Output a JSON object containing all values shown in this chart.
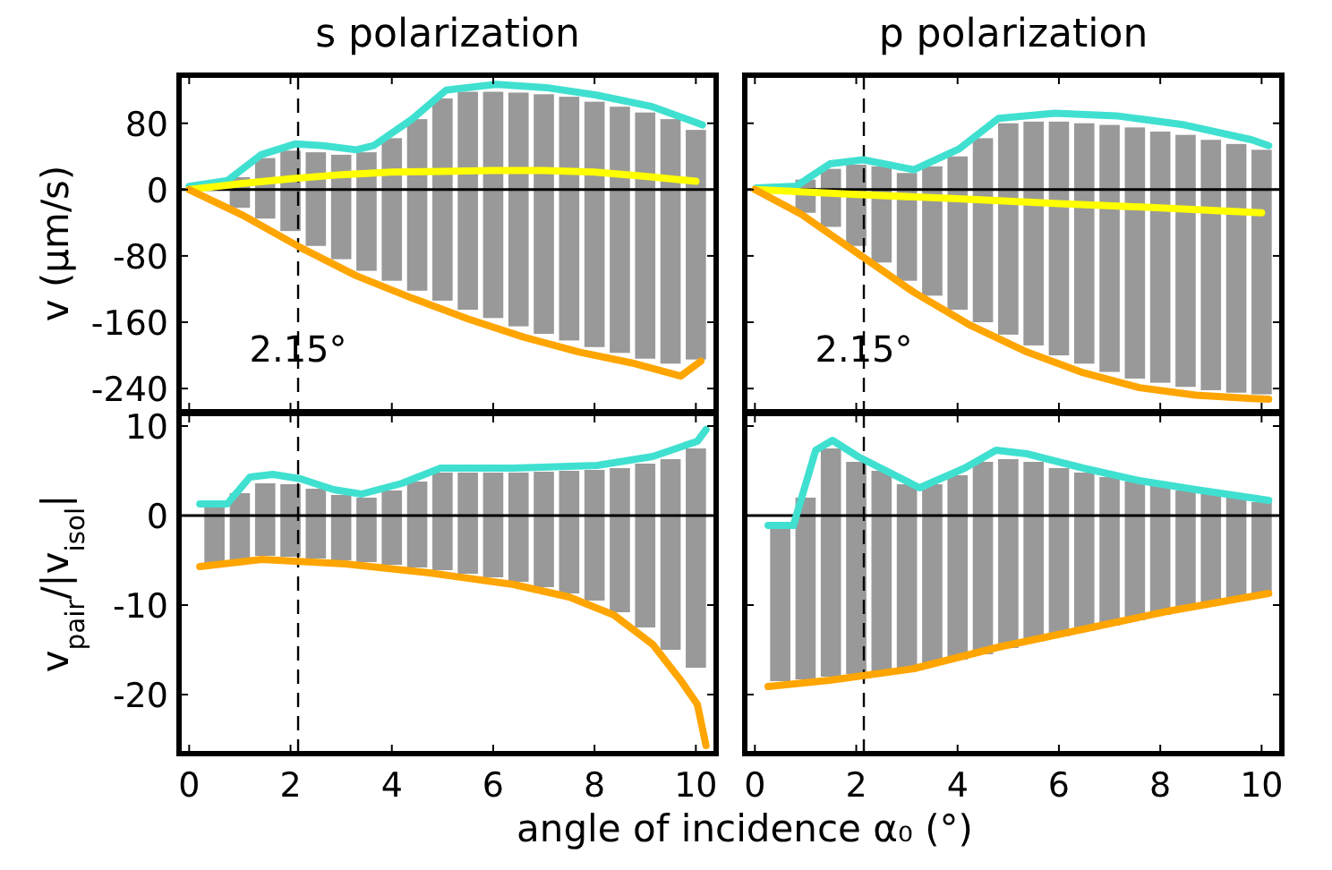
{
  "chart_data": [
    {
      "type": "line",
      "title": "s polarization",
      "ylabel": "v (μm/s)",
      "xlim": [
        -0.2,
        10.4
      ],
      "ylim": [
        -268,
        138
      ],
      "xticks": [
        0,
        2,
        4,
        6,
        8,
        10
      ],
      "yticks": [
        -240,
        -160,
        -80,
        0,
        80
      ],
      "tick_labels": "y",
      "marker": "none",
      "line_style": "solid",
      "ref_lines": [
        {
          "axis": "x",
          "value": 2.15,
          "label": "2.15°",
          "line_style": "dashed",
          "color": "#000000"
        },
        {
          "axis": "y",
          "value": 0,
          "label": null,
          "line_style": "solid",
          "color": "#000000"
        }
      ],
      "series": [
        {
          "type": "bar",
          "color": "#999999",
          "x": [
            1,
            1.5,
            2,
            2.5,
            3,
            3.5,
            4,
            4.5,
            5,
            5.5,
            6,
            6.5,
            7,
            7.5,
            8,
            8.5,
            9,
            9.5,
            10
          ],
          "base": [
            -22,
            -35,
            -50,
            -68,
            -84,
            -98,
            -110,
            -122,
            -134,
            -145,
            -155,
            -165,
            -174,
            -182,
            -190,
            -197,
            -204,
            -210,
            -205
          ],
          "values": [
            37,
            73,
            97,
            113,
            126,
            143,
            172,
            207,
            244,
            263,
            273,
            282,
            289,
            294,
            296,
            297,
            297,
            295,
            277
          ]
        },
        {
          "color": "#40e0d0",
          "x": [
            0,
            0.76,
            1.42,
            2.09,
            2.64,
            3.3,
            3.64,
            4.4,
            5.07,
            6.06,
            7.05,
            8.04,
            9.14,
            10.13
          ],
          "values": [
            4,
            11,
            42,
            55,
            53,
            48,
            53,
            85,
            120,
            127,
            123,
            114,
            100,
            78
          ]
        },
        {
          "color": "#ffff00",
          "x": [
            0,
            1,
            2,
            3,
            4,
            5,
            6,
            7,
            8,
            9,
            10
          ],
          "values": [
            0,
            7,
            13,
            18,
            21,
            22,
            23,
            23,
            21,
            16,
            10
          ]
        },
        {
          "color": "#ffa500",
          "x": [
            0,
            1.09,
            2.2,
            3.3,
            4.4,
            5.5,
            6.6,
            7.7,
            8.8,
            9.7,
            10.1
          ],
          "values": [
            0,
            -32,
            -70,
            -104,
            -131,
            -156,
            -178,
            -196,
            -210,
            -225,
            -207
          ]
        }
      ]
    },
    {
      "type": "line",
      "title": "p polarization",
      "xlim": [
        -0.2,
        10.4
      ],
      "ylim": [
        -268,
        138
      ],
      "xticks": [
        0,
        2,
        4,
        6,
        8,
        10
      ],
      "yticks": [
        -240,
        -160,
        -80,
        0,
        80
      ],
      "tick_labels": false,
      "marker": "none",
      "line_style": "solid",
      "ref_lines": [
        {
          "axis": "x",
          "value": 2.15,
          "label": "2.15°",
          "line_style": "dashed",
          "color": "#000000"
        },
        {
          "axis": "y",
          "value": 0,
          "label": null,
          "line_style": "solid",
          "color": "#000000"
        }
      ],
      "series": [
        {
          "type": "bar",
          "color": "#999999",
          "x": [
            1,
            1.5,
            2,
            2.5,
            3,
            3.5,
            4,
            4.5,
            5,
            5.5,
            6,
            6.5,
            7,
            7.5,
            8,
            8.5,
            9,
            9.5,
            10
          ],
          "base": [
            -28,
            -45,
            -68,
            -88,
            -110,
            -128,
            -145,
            -160,
            -175,
            -188,
            -200,
            -210,
            -220,
            -228,
            -233,
            -238,
            -242,
            -245,
            -247
          ],
          "values": [
            40,
            70,
            98,
            116,
            130,
            156,
            185,
            222,
            255,
            270,
            282,
            290,
            298,
            303,
            303,
            304,
            302,
            300,
            295
          ]
        },
        {
          "color": "#40e0d0",
          "x": [
            0.03,
            0.81,
            1.48,
            2.14,
            3.14,
            4.03,
            4.81,
            5.92,
            7.14,
            8.48,
            9.81,
            10.14
          ],
          "values": [
            2,
            4,
            31,
            36,
            24,
            49,
            86,
            92,
            89,
            78,
            60,
            53
          ]
        },
        {
          "color": "#ffff00",
          "x": [
            0,
            2,
            4,
            6,
            8,
            10
          ],
          "values": [
            0,
            -6,
            -11,
            -17,
            -22,
            -28
          ]
        },
        {
          "color": "#ffa500",
          "x": [
            0,
            0.92,
            2.03,
            3.14,
            4.26,
            5.37,
            6.48,
            7.59,
            8.7,
            9.81,
            10.14
          ],
          "values": [
            0,
            -30,
            -77,
            -124,
            -164,
            -196,
            -221,
            -239,
            -248,
            -252,
            -253
          ]
        }
      ]
    },
    {
      "type": "line",
      "ylabel": "v$_{pair}$/|v$_{isol}$|",
      "xlabel": "angle of incidence α₀ (°)",
      "xlim": [
        -0.2,
        10.4
      ],
      "ylim": [
        -26.6,
        11.4
      ],
      "xticks": [
        0,
        2,
        4,
        6,
        8,
        10
      ],
      "yticks": [
        -20,
        -10,
        0,
        10
      ],
      "marker": "none",
      "line_style": "solid",
      "ref_lines": [
        {
          "axis": "x",
          "value": 2.15,
          "label": null,
          "line_style": "dashed",
          "color": "#000000"
        },
        {
          "axis": "y",
          "value": 0,
          "label": null,
          "line_style": "solid",
          "color": "#000000"
        }
      ],
      "series": [
        {
          "type": "bar",
          "color": "#999999",
          "x": [
            0.5,
            1,
            1.5,
            2,
            2.5,
            3,
            3.5,
            4,
            4.5,
            5,
            5.5,
            6,
            6.5,
            7,
            7.5,
            8,
            8.5,
            9,
            9.5,
            10
          ],
          "base": [
            -5.5,
            -5,
            -4.5,
            -4.6,
            -4.8,
            -5,
            -5.2,
            -5.5,
            -5.8,
            -6.1,
            -6.5,
            -6.9,
            -7.4,
            -8,
            -8.7,
            -9.5,
            -10.8,
            -12.5,
            -15,
            -17
          ],
          "values": [
            6.5,
            7.5,
            8.1,
            8.1,
            7.8,
            7.3,
            7.2,
            8.3,
            9.6,
            10.9,
            11.3,
            11.7,
            12.2,
            12.9,
            13.7,
            14.6,
            16.1,
            18.3,
            21.3,
            24.5
          ]
        },
        {
          "color": "#40e0d0",
          "x": [
            0.21,
            0.75,
            1.2,
            1.65,
            2.2,
            2.85,
            3.4,
            4.2,
            4.96,
            6.4,
            8.05,
            9.15,
            10.03,
            10.2
          ],
          "values": [
            1.3,
            1.3,
            4.3,
            4.6,
            4.1,
            2.9,
            2.4,
            3.6,
            5.3,
            5.3,
            5.6,
            6.6,
            8.3,
            9.6
          ]
        },
        {
          "color": "#ffa500",
          "x": [
            0.21,
            1.43,
            3.08,
            4.74,
            6.4,
            7.5,
            8.38,
            9.15,
            9.7,
            10.03,
            10.2
          ],
          "values": [
            -5.7,
            -4.9,
            -5.4,
            -6.4,
            -7.7,
            -9.1,
            -11.1,
            -14.4,
            -18.4,
            -21.1,
            -25.7
          ]
        }
      ]
    },
    {
      "type": "line",
      "xlim": [
        -0.2,
        10.4
      ],
      "ylim": [
        -26.6,
        11.4
      ],
      "xticks": [
        0,
        2,
        4,
        6,
        8,
        10
      ],
      "yticks": [
        -20,
        -10,
        0,
        10
      ],
      "tick_labels": "x",
      "marker": "none",
      "line_style": "solid",
      "ref_lines": [
        {
          "axis": "x",
          "value": 2.15,
          "label": null,
          "line_style": "dashed",
          "color": "#000000"
        },
        {
          "axis": "y",
          "value": 0,
          "label": null,
          "line_style": "solid",
          "color": "#000000"
        }
      ],
      "series": [
        {
          "type": "bar",
          "color": "#999999",
          "x": [
            0.5,
            1,
            1.5,
            2,
            2.5,
            3,
            3.5,
            4,
            4.5,
            5,
            5.5,
            6,
            6.5,
            7,
            7.5,
            8,
            8.5,
            9,
            9.5,
            10
          ],
          "base": [
            -18.5,
            -18.3,
            -18,
            -17.7,
            -17.4,
            -17,
            -16.6,
            -16.1,
            -15.5,
            -14.8,
            -14.1,
            -13.5,
            -12.9,
            -12.3,
            -11.7,
            -11.1,
            -10.5,
            -10,
            -9.5,
            -9
          ],
          "values": [
            17,
            20.3,
            25.5,
            23.7,
            22.4,
            20.5,
            20.1,
            20.6,
            21.5,
            21.1,
            20.1,
            18.8,
            17.7,
            16.6,
            15.5,
            14.4,
            13.3,
            12.4,
            11.5,
            10.5
          ]
        },
        {
          "color": "#40e0d0",
          "x": [
            0.26,
            0.76,
            1.2,
            1.53,
            2.03,
            3.25,
            4.14,
            4.76,
            5.37,
            6.48,
            7.59,
            8.7,
            10.14
          ],
          "values": [
            -1.1,
            -1.1,
            7.3,
            8.4,
            6.6,
            3.1,
            5.3,
            7.3,
            6.9,
            5.3,
            3.9,
            2.9,
            1.7
          ]
        },
        {
          "color": "#ffa500",
          "x": [
            0.26,
            1.48,
            3.14,
            4.81,
            6.48,
            8.14,
            10.14
          ],
          "values": [
            -19.1,
            -18.4,
            -17.1,
            -14.7,
            -12.7,
            -10.7,
            -8.7
          ]
        }
      ]
    }
  ]
}
